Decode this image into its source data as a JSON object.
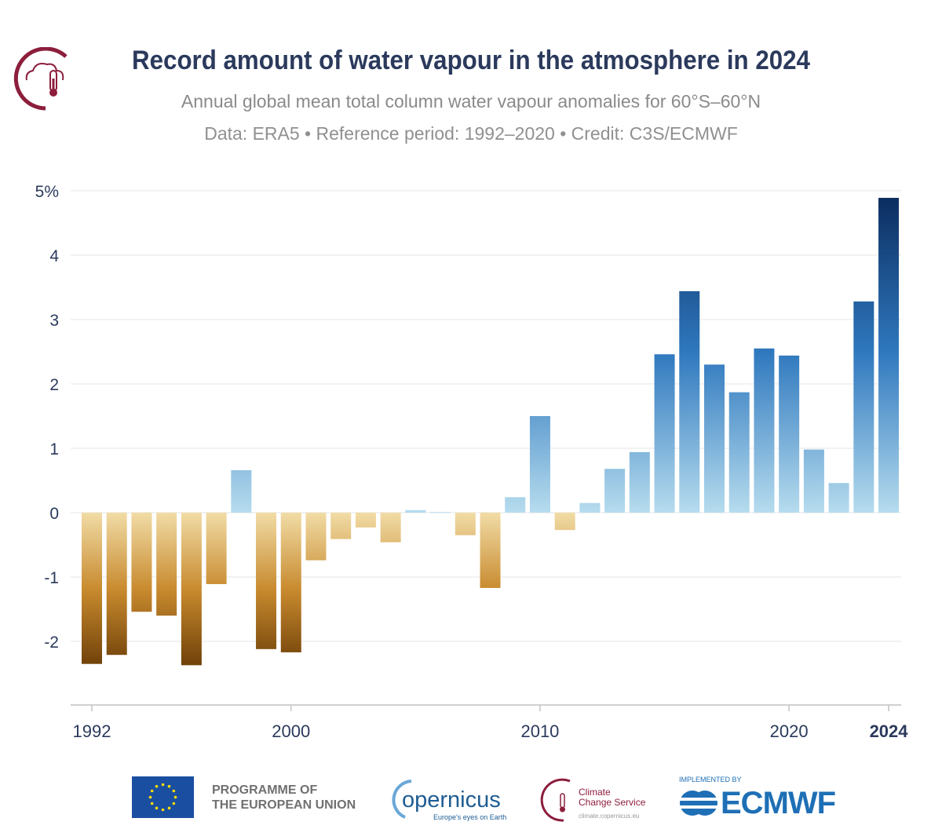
{
  "header": {
    "title": "Record amount of water vapour in the atmosphere in 2024",
    "subtitle": "Annual global mean total column water vapour anomalies for 60°S–60°N",
    "credit_line": "Data: ERA5 • Reference period: 1992–2020 • Credit: C3S/ECMWF",
    "logo_icon": "cloud-thermometer-icon"
  },
  "chart_data": {
    "type": "bar",
    "title": "Record amount of water vapour in the atmosphere in 2024",
    "subtitle": "Annual global mean total column water vapour anomalies for 60°S–60°N",
    "categories": [
      1992,
      1993,
      1994,
      1995,
      1996,
      1997,
      1998,
      1999,
      2000,
      2001,
      2002,
      2003,
      2004,
      2005,
      2006,
      2007,
      2008,
      2009,
      2010,
      2011,
      2012,
      2013,
      2014,
      2015,
      2016,
      2017,
      2018,
      2019,
      2020,
      2021,
      2022,
      2023,
      2024
    ],
    "values": [
      -2.35,
      -2.21,
      -1.54,
      -1.6,
      -2.37,
      -1.11,
      0.66,
      -2.12,
      -2.17,
      -0.74,
      -0.41,
      -0.23,
      -0.46,
      0.04,
      0.01,
      -0.35,
      -1.17,
      0.24,
      1.5,
      -0.27,
      0.15,
      0.68,
      0.94,
      2.46,
      3.44,
      2.3,
      1.87,
      2.55,
      2.44,
      0.98,
      0.46,
      3.28,
      4.89
    ],
    "unit": "%",
    "ylim": [
      -3,
      5
    ],
    "yticks": [
      "5%",
      "4",
      "3",
      "2",
      "1",
      "0",
      "-1",
      "-2"
    ],
    "ytick_values": [
      5,
      4,
      3,
      2,
      1,
      0,
      -1,
      -2
    ],
    "xticks": [
      "1992",
      "2000",
      "2010",
      "2020",
      "2024"
    ],
    "xtick_values": [
      1992,
      2000,
      2010,
      2020,
      2024
    ],
    "xtick_bold": "2024",
    "grid": true,
    "colors": {
      "positive_light": "#b6dcee",
      "positive_mid": "#2f78be",
      "positive_dark": "#0a2a5c",
      "negative_light": "#f1dca6",
      "negative_mid": "#c88a2e",
      "negative_dark": "#6e3f08",
      "grid": "#e6e6e6",
      "axis": "#d0d0d0",
      "tick_text": "#2b3a5c"
    }
  },
  "footer": {
    "eu_text_line1": "PROGRAMME OF",
    "eu_text_line2": "THE EUROPEAN UNION",
    "copernicus_name": "opernicus",
    "copernicus_tagline": "Europe's eyes on Earth",
    "c3s_line1": "Climate",
    "c3s_line2": "Change Service",
    "c3s_url": "climate.copernicus.eu",
    "ecmwf_implemented": "IMPLEMENTED BY",
    "ecmwf_name": "ECMWF"
  }
}
